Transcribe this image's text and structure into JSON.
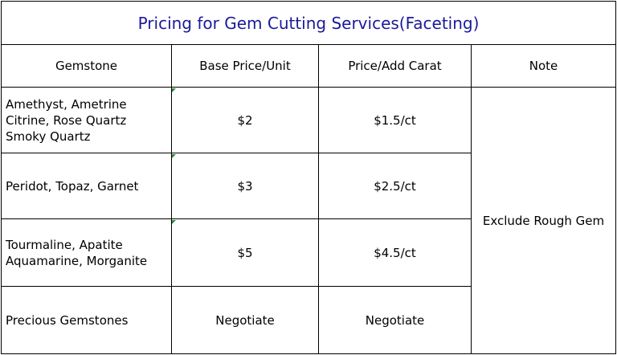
{
  "title": "Pricing for Gem Cutting Services(Faceting)",
  "headers": {
    "gemstone": "Gemstone",
    "base_price": "Base Price/Unit",
    "add_carat": "Price/Add Carat",
    "note": "Note"
  },
  "rows": [
    {
      "gemstone": [
        "Amethyst, Ametrine",
        "Citrine, Rose Quartz",
        "Smoky Quartz"
      ],
      "base_price": "$2",
      "add_carat": "$1.5/ct"
    },
    {
      "gemstone": [
        "Peridot, Topaz, Garnet"
      ],
      "base_price": "$3",
      "add_carat": "$2.5/ct"
    },
    {
      "gemstone": [
        "Tourmaline, Apatite",
        "Aquamarine, Morganite"
      ],
      "base_price": "$5",
      "add_carat": "$4.5/ct"
    },
    {
      "gemstone": [
        "Precious Gemstones"
      ],
      "base_price": "Negotiate",
      "add_carat": "Negotiate"
    }
  ],
  "note": "Exclude Rough Gem"
}
